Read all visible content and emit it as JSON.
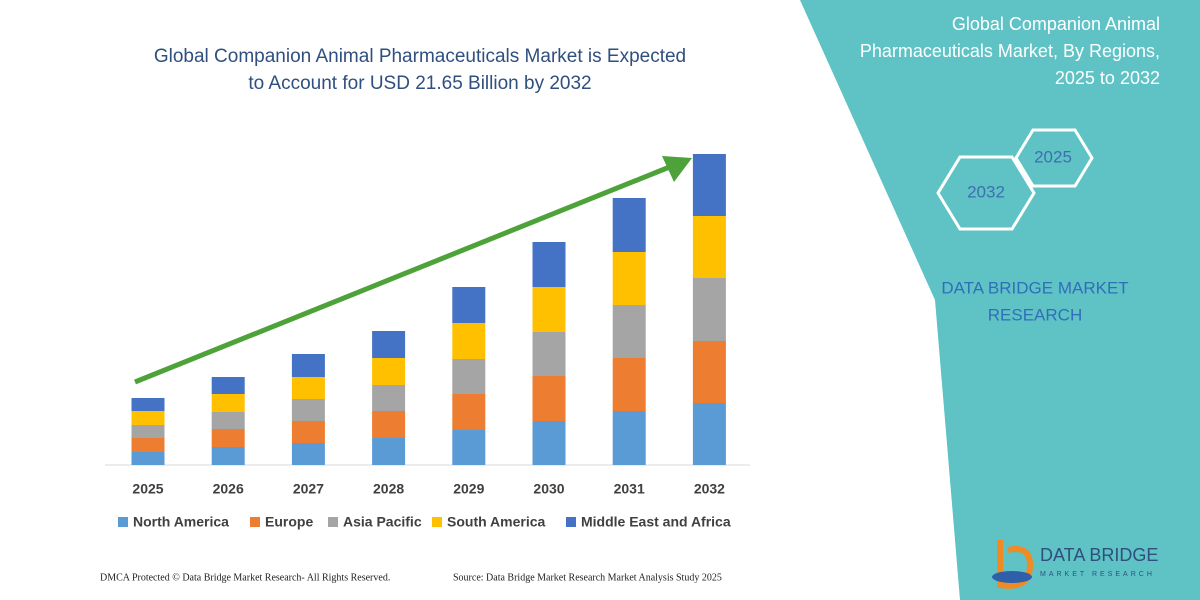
{
  "chart_data": {
    "type": "bar",
    "stacked": true,
    "title_lines": [
      "Global Companion Animal Pharmaceuticals Market is Expected",
      "to Account for USD 21.65 Billion by 2032"
    ],
    "categories": [
      "2025",
      "2026",
      "2027",
      "2028",
      "2029",
      "2030",
      "2031",
      "2032"
    ],
    "ylim": [
      0,
      320
    ],
    "series": [
      {
        "name": "North America",
        "color": "#5b9bd5",
        "values": [
          13,
          18,
          22,
          27,
          35,
          44,
          54,
          62
        ]
      },
      {
        "name": "Europe",
        "color": "#ed7d31",
        "values": [
          14,
          18,
          22,
          27,
          36,
          45,
          53,
          62
        ]
      },
      {
        "name": "Asia Pacific",
        "color": "#a5a5a5",
        "values": [
          13,
          17,
          22,
          26,
          35,
          44,
          53,
          63
        ]
      },
      {
        "name": "South America",
        "color": "#ffc000",
        "values": [
          14,
          18,
          22,
          27,
          36,
          45,
          53,
          62
        ]
      },
      {
        "name": "Middle East and Africa",
        "color": "#4472c4",
        "values": [
          13,
          17,
          23,
          27,
          36,
          45,
          54,
          62
        ]
      }
    ]
  },
  "panel": {
    "title_lines": [
      "Global Companion Animal",
      "Pharmaceuticals Market, By Regions,",
      "2025 to 2032"
    ],
    "hexagons": [
      "2025",
      "2032"
    ],
    "brand_lines": [
      "DATA BRIDGE MARKET",
      "RESEARCH"
    ],
    "logo": {
      "name": "DATA BRIDGE",
      "tagline": "MARKET RESEARCH"
    }
  },
  "footer": {
    "left": "DMCA Protected © Data Bridge Market Research-  All Rights Reserved.",
    "right": "Source: Data Bridge Market Research  Market Analysis Study 2025"
  }
}
